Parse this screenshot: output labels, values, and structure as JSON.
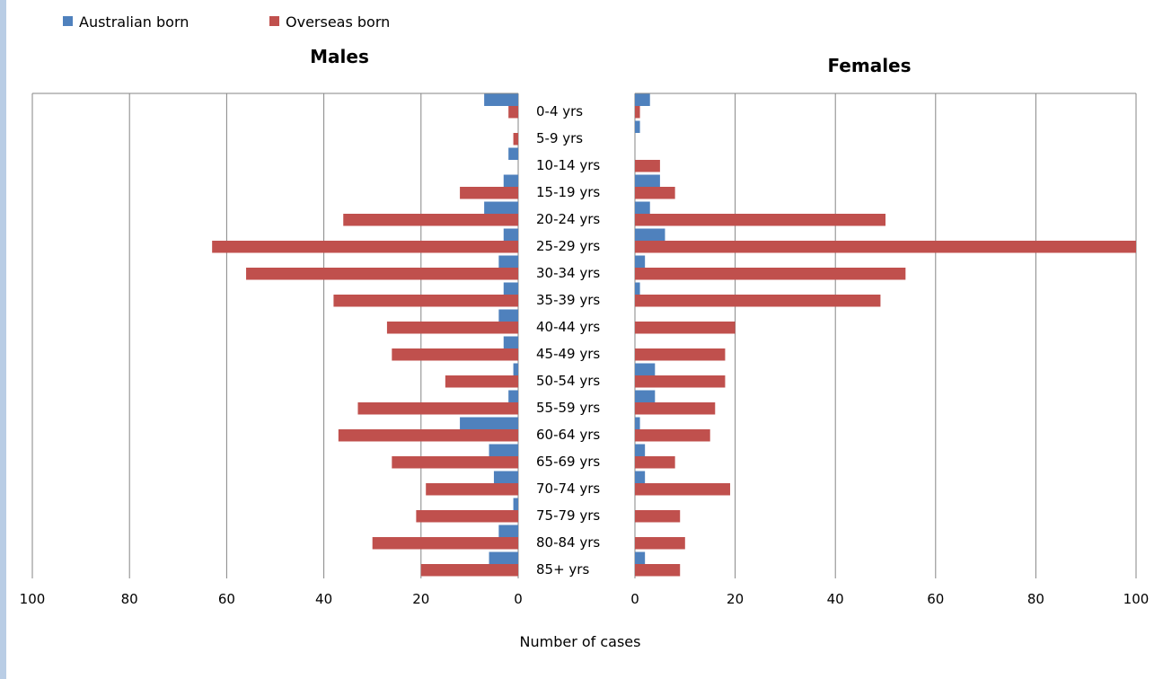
{
  "colors": {
    "australian": "#4f81bd",
    "overseas": "#c0504d",
    "grid": "#868686",
    "strip": "#b9cde5",
    "text": "#000000"
  },
  "chart_data": {
    "type": "bar",
    "orientation": "horizontal",
    "layout": "population-pyramid",
    "xlabel": "Number of cases",
    "xlim": [
      0,
      100
    ],
    "xticks": [
      0,
      20,
      40,
      60,
      80,
      100
    ],
    "xtick_labels": [
      "0",
      "20",
      "40",
      "60",
      "80",
      "100"
    ],
    "grid": true,
    "legend_position": "top-left",
    "legend": [
      "Australian born",
      "Overseas born"
    ],
    "categories": [
      "0-4 yrs",
      "5-9 yrs",
      "10-14 yrs",
      "15-19 yrs",
      "20-24 yrs",
      "25-29 yrs",
      "30-34 yrs",
      "35-39 yrs",
      "40-44 yrs",
      "45-49 yrs",
      "50-54 yrs",
      "55-59 yrs",
      "60-64 yrs",
      "65-69 yrs",
      "70-74 yrs",
      "75-79 yrs",
      "80-84 yrs",
      "85+ yrs"
    ],
    "panels": [
      {
        "title": "Males",
        "series": [
          {
            "name": "Australian born",
            "values": [
              7,
              0,
              2,
              3,
              7,
              3,
              4,
              3,
              4,
              3,
              1,
              2,
              12,
              6,
              5,
              1,
              4,
              6
            ]
          },
          {
            "name": "Overseas born",
            "values": [
              2,
              1,
              0,
              12,
              36,
              63,
              56,
              38,
              27,
              26,
              15,
              33,
              37,
              26,
              19,
              21,
              30,
              20
            ]
          }
        ]
      },
      {
        "title": "Females",
        "series": [
          {
            "name": "Australian born",
            "values": [
              3,
              1,
              0,
              5,
              3,
              6,
              2,
              1,
              0,
              0,
              4,
              4,
              1,
              2,
              2,
              0,
              0,
              2
            ]
          },
          {
            "name": "Overseas born",
            "values": [
              1,
              0,
              5,
              8,
              50,
              100,
              54,
              49,
              20,
              18,
              18,
              16,
              15,
              8,
              19,
              9,
              10,
              9
            ]
          }
        ]
      }
    ]
  }
}
